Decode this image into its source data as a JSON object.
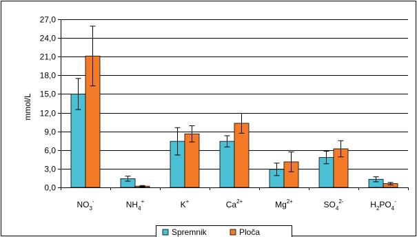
{
  "chart_data": {
    "type": "bar",
    "title": "",
    "xlabel": "",
    "ylabel": "mmol/L",
    "ylim": [
      0,
      27
    ],
    "yticks": [
      "0,0",
      "3,0",
      "6,0",
      "9,0",
      "12,0",
      "15,0",
      "18,0",
      "21,0",
      "24,0",
      "27,0"
    ],
    "categories": [
      {
        "base": "NO",
        "sub": "3",
        "sup": "-"
      },
      {
        "base": "NH",
        "sub": "4",
        "sup": "+"
      },
      {
        "base": "K",
        "sub": "",
        "sup": "+"
      },
      {
        "base": "Ca",
        "sub": "",
        "sup": "2+"
      },
      {
        "base": "Mg",
        "sub": "",
        "sup": "2+"
      },
      {
        "base": "SO",
        "sub": "4",
        "sup": "2-"
      },
      {
        "base": "H",
        "sub": "2",
        "sup": "",
        "base2": "PO",
        "sub2": "4",
        "sup2": "-"
      }
    ],
    "series": [
      {
        "name": "Spremnik",
        "color": "#4BC0D4",
        "values": [
          15.0,
          1.4,
          7.4,
          7.4,
          2.9,
          4.8,
          1.3
        ],
        "errors": [
          2.5,
          0.4,
          2.2,
          0.9,
          1.0,
          1.0,
          0.4
        ]
      },
      {
        "name": "Ploča",
        "color": "#F57A28",
        "values": [
          21.1,
          0.2,
          8.6,
          10.3,
          4.1,
          6.2,
          0.6
        ],
        "errors": [
          4.8,
          0.1,
          1.3,
          1.6,
          1.6,
          1.3,
          0.2
        ]
      }
    ],
    "legend_position": "bottom",
    "grid": "horizontal"
  }
}
